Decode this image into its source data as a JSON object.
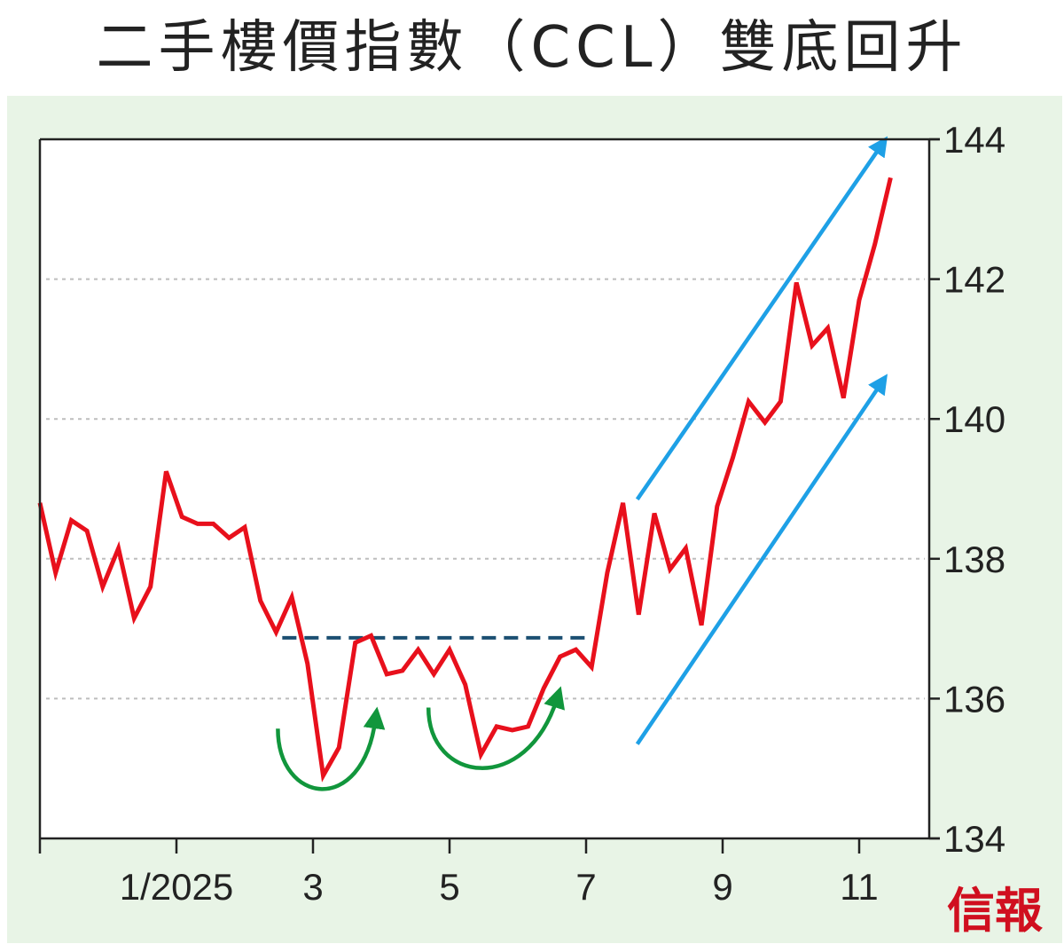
{
  "title": "二手樓價指數（CCL）雙底回升",
  "logo_text": "信報",
  "colors": {
    "series": "#e8101c",
    "neckline": "#1b4f72",
    "trend_arrows": "#1ea0e6",
    "bottom_arrows": "#11963c",
    "panel_background": "#e8f4e6",
    "plot_background": "#ffffff",
    "grid": "#bdbdbd",
    "logo": "#d00f1f"
  },
  "chart_data": {
    "type": "line",
    "title": "二手樓價指數（CCL）雙底回升",
    "xlabel": "",
    "ylabel": "",
    "x_tick_labels": [
      "1/2025",
      "3",
      "5",
      "7",
      "9",
      "11"
    ],
    "x_tick_months": [
      1,
      3,
      5,
      7,
      9,
      11
    ],
    "y_axis": {
      "position": "right",
      "min": 134,
      "max": 144,
      "ticks": [
        134,
        136,
        138,
        140,
        142,
        144
      ]
    },
    "grid": {
      "horizontal": true,
      "style": "dotted",
      "values": [
        136,
        138,
        140,
        142
      ]
    },
    "x_unit": "month (weekly readings, from late Nov 2024 to late Nov 2025)",
    "series": [
      {
        "x": [
          -1.0,
          -0.77,
          -0.54,
          -0.31,
          -0.08,
          0.15,
          0.38,
          0.62,
          0.85,
          1.08,
          1.31,
          1.54,
          1.77,
          2.0,
          2.23,
          2.46,
          2.69,
          2.92,
          3.15,
          3.38,
          3.62,
          3.85,
          4.08,
          4.31,
          4.54,
          4.77,
          5.0,
          5.23,
          5.46,
          5.69,
          5.92,
          6.15,
          6.38,
          6.62,
          6.85,
          7.08,
          7.31,
          7.54,
          7.77,
          8.0,
          8.23,
          8.46,
          8.69,
          8.92,
          9.15,
          9.38,
          9.62,
          9.85,
          10.08,
          10.31,
          10.54,
          10.77,
          11.0,
          11.23,
          11.46
        ],
        "y": [
          138.8,
          137.8,
          138.55,
          138.4,
          137.6,
          138.15,
          137.15,
          137.6,
          139.25,
          138.6,
          138.5,
          138.5,
          138.3,
          138.45,
          137.4,
          136.95,
          137.45,
          136.5,
          134.9,
          135.3,
          136.8,
          136.9,
          136.35,
          136.4,
          136.7,
          136.35,
          136.7,
          136.2,
          135.2,
          135.6,
          135.55,
          135.6,
          136.15,
          136.6,
          136.7,
          136.45,
          137.8,
          138.8,
          137.2,
          138.65,
          137.85,
          138.15,
          137.05,
          138.75,
          139.45,
          140.25,
          139.95,
          140.25,
          141.95,
          141.05,
          141.3,
          140.3,
          141.7,
          142.5,
          143.45
        ]
      }
    ],
    "annotations": [
      {
        "type": "neckline",
        "style": "dashed",
        "y": 136.87,
        "x_from": 2.55,
        "x_to": 7.0
      },
      {
        "type": "curved-arrow",
        "role": "first bottom",
        "near_x": 3.2,
        "near_y": 135.0
      },
      {
        "type": "curved-arrow",
        "role": "second bottom",
        "near_x": 5.6,
        "near_y": 135.3
      },
      {
        "type": "trend-arrow",
        "role": "upper channel",
        "from": [
          7.75,
          138.85
        ],
        "to": [
          11.35,
          143.95
        ]
      },
      {
        "type": "trend-arrow",
        "role": "lower channel",
        "from": [
          7.75,
          135.35
        ],
        "to": [
          11.35,
          140.55
        ]
      }
    ]
  }
}
